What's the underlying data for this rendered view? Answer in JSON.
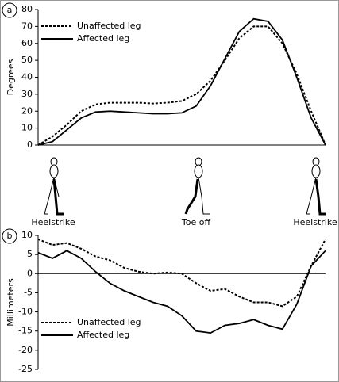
{
  "phase_labels": [
    "Heelstrike",
    "Toe off",
    "Heelstrike"
  ],
  "chart_data": [
    {
      "type": "line",
      "panel_label": "a",
      "y_label": "Degrees",
      "x": [
        0,
        5,
        10,
        15,
        20,
        25,
        30,
        35,
        40,
        45,
        50,
        55,
        60,
        65,
        70,
        75,
        80,
        85,
        90,
        95,
        100
      ],
      "xlim": [
        0,
        100
      ],
      "ylim": [
        0,
        80
      ],
      "yticks": [
        0,
        10,
        20,
        30,
        40,
        50,
        60,
        70,
        80
      ],
      "series": [
        {
          "name": "Unaffected leg",
          "color": "#000000",
          "dash": true,
          "values": [
            0,
            5,
            12,
            20,
            24,
            25,
            25,
            25,
            24.5,
            25,
            26,
            30,
            38,
            50,
            63,
            70,
            70,
            60,
            42,
            20,
            0
          ]
        },
        {
          "name": "Affected leg",
          "color": "#000000",
          "dash": false,
          "values": [
            0,
            2,
            9,
            16,
            19.5,
            20,
            19.5,
            19,
            18.5,
            18.5,
            19,
            23,
            35,
            51,
            67,
            74.5,
            73,
            62,
            40,
            16,
            0
          ]
        }
      ]
    },
    {
      "type": "line",
      "panel_label": "b",
      "y_label": "Millimeters",
      "x": [
        0,
        5,
        10,
        15,
        20,
        25,
        30,
        35,
        40,
        45,
        50,
        55,
        60,
        65,
        70,
        75,
        80,
        85,
        90,
        95,
        100
      ],
      "xlim": [
        0,
        100
      ],
      "ylim": [
        -25,
        10
      ],
      "yticks": [
        10,
        5,
        0,
        -5,
        -10,
        -15,
        -20,
        -25
      ],
      "series": [
        {
          "name": "Unaffected leg",
          "color": "#000000",
          "dash": true,
          "values": [
            9,
            7.5,
            8,
            6.5,
            4.5,
            3.5,
            1.5,
            0.5,
            0,
            0.3,
            0,
            -2.5,
            -4.5,
            -4,
            -6,
            -7.5,
            -7.5,
            -8.5,
            -6,
            2,
            9
          ]
        },
        {
          "name": "Affected leg",
          "color": "#000000",
          "dash": false,
          "values": [
            5.5,
            4,
            6,
            4,
            0.5,
            -2.5,
            -4.5,
            -6,
            -7.5,
            -8.5,
            -11,
            -15,
            -15.5,
            -13.5,
            -13,
            -12,
            -13.5,
            -14.5,
            -8,
            2,
            6
          ]
        }
      ]
    }
  ]
}
